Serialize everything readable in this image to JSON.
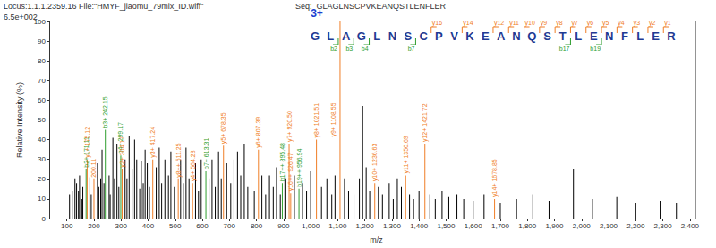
{
  "chart_data": {
    "type": "bar",
    "header": "Locus:1.1.1.2359.16 File:\"HMYF_jiaomu_79mix_ID.wiff\"",
    "sequence_label": "Seq:",
    "sequence": "GLAGLNSCPVKEANQSTLENFLER",
    "charge": "3+",
    "scale_label": "6.5e+002",
    "x_label": "m/z",
    "y_label": "Relative Intensity (%)",
    "xlim": [
      35,
      2450
    ],
    "xticks": [
      100,
      200,
      300,
      400,
      500,
      600,
      700,
      800,
      900,
      1000,
      1100,
      1200,
      1300,
      1400,
      1500,
      1600,
      1700,
      1800,
      1900,
      2000,
      2100,
      2200,
      2300,
      2400
    ],
    "ylim": [
      0,
      100
    ],
    "yticks": [
      0,
      10,
      20,
      30,
      40,
      50,
      60,
      70,
      80,
      90,
      100
    ],
    "color": "#000000",
    "peaks": {
      "x": [
        110,
        120,
        130,
        136,
        143,
        147,
        155,
        159,
        185,
        190,
        213,
        218,
        225,
        230,
        237,
        256,
        260,
        270,
        276,
        285,
        292,
        315,
        322,
        330,
        341,
        350,
        358,
        369,
        375,
        382,
        389,
        397,
        405,
        430,
        441,
        450,
        462,
        475,
        484,
        497,
        520,
        530,
        540,
        551,
        575,
        586,
        596,
        625,
        636,
        648,
        660,
        670,
        690,
        705,
        717,
        730,
        742,
        755,
        768,
        780,
        792,
        820,
        834,
        848,
        862,
        874,
        888,
        905,
        940,
        970,
        985,
        1000,
        1040,
        1060,
        1078,
        1090,
        1125,
        1140,
        1160,
        1180,
        1192,
        1205,
        1218,
        1250,
        1265,
        1290,
        1305,
        1320,
        1335,
        1365,
        1380,
        1400,
        1440,
        1460,
        1485,
        1510,
        1540,
        1565,
        1600,
        1640,
        1700,
        1760,
        1820,
        1880,
        1970,
        2040,
        2130,
        2200,
        2290,
        2350,
        2420
      ],
      "values": [
        12,
        14,
        20,
        18,
        14,
        22,
        10,
        16,
        21,
        12,
        28,
        16,
        20,
        35,
        18,
        22,
        12,
        41,
        20,
        38,
        16,
        30,
        20,
        42,
        25,
        40,
        30,
        15,
        29,
        18,
        35,
        28,
        16,
        26,
        36,
        18,
        30,
        22,
        34,
        16,
        30,
        18,
        36,
        20,
        28,
        14,
        30,
        20,
        30,
        16,
        34,
        20,
        28,
        18,
        30,
        34,
        22,
        38,
        16,
        24,
        14,
        22,
        12,
        22,
        16,
        26,
        12,
        20,
        22,
        18,
        14,
        24,
        16,
        20,
        12,
        22,
        20,
        14,
        12,
        20,
        57,
        26,
        14,
        16,
        12,
        18,
        10,
        20,
        16,
        12,
        10,
        14,
        12,
        10,
        14,
        11,
        12,
        10,
        9,
        12,
        8,
        10,
        12,
        9,
        25,
        10,
        11,
        8,
        9,
        8,
        100
      ]
    },
    "annotations": [
      {
        "label": "b2+ 171.11",
        "x": 171.11,
        "value": 25,
        "color": "#2e9e2e"
      },
      {
        "label": "y1+ 175.12",
        "x": 175.12,
        "value": 30,
        "color": "#f07e26"
      },
      {
        "label": "200.11",
        "x": 200.11,
        "value": 20,
        "color": "#f07e26"
      },
      {
        "label": "b3+ 242.15",
        "x": 242.15,
        "value": 45,
        "color": "#2e9e2e"
      },
      {
        "label": "b4+ 299.17",
        "x": 299.17,
        "value": 32,
        "color": "#2e9e2e"
      },
      {
        "label": "y2+ 304.17",
        "x": 304.17,
        "value": 25,
        "color": "#f07e26"
      },
      {
        "label": "y3+ 417.24",
        "x": 417.24,
        "value": 30,
        "color": "#f07e26"
      },
      {
        "label": "y8++ 511.25",
        "x": 511.25,
        "value": 20,
        "color": "#f07e26"
      },
      {
        "label": "y4+ 564.28",
        "x": 564.28,
        "value": 18,
        "color": "#f07e26"
      },
      {
        "label": "b7+ 613.31",
        "x": 613.31,
        "value": 24,
        "color": "#2e9e2e"
      },
      {
        "label": "y5+ 678.35",
        "x": 678.35,
        "value": 37,
        "color": "#f07e26"
      },
      {
        "label": "y6+ 807.39",
        "x": 807.39,
        "value": 35,
        "color": "#f07e26"
      },
      {
        "label": "b17++ 895.48",
        "x": 895.48,
        "value": 18,
        "color": "#2e9e2e"
      },
      {
        "label": "y7+ 920.50",
        "x": 920.5,
        "value": 38,
        "color": "#f07e26"
      },
      {
        "label": "y16++ 926.47",
        "x": 926.47,
        "value": 13,
        "color": "#f07e26"
      },
      {
        "label": "b19++ 956.94",
        "x": 956.94,
        "value": 15,
        "color": "#2e9e2e"
      },
      {
        "label": "y8+ 1021.51",
        "x": 1021.51,
        "value": 40,
        "color": "#f07e26"
      },
      {
        "label": "y9+ 1108.55",
        "x": 1108.55,
        "value": 100,
        "color": "#f07e26"
      },
      {
        "label": "y10+ 1236.63",
        "x": 1236.63,
        "value": 18,
        "color": "#f07e26"
      },
      {
        "label": "y11+ 1350.69",
        "x": 1350.69,
        "value": 22,
        "color": "#f07e26"
      },
      {
        "label": "y12+ 1421.72",
        "x": 1421.72,
        "value": 38,
        "color": "#f07e26"
      },
      {
        "label": "y14+ 1678.85",
        "x": 1678.85,
        "value": 10,
        "color": "#f07e26"
      }
    ],
    "y_ion_color": "#f07e26",
    "b_ion_color": "#2e9e2e",
    "sequence_color": "#1f3a93",
    "y_ions": [
      {
        "label": "y16",
        "n": 16
      },
      {
        "label": "y14",
        "n": 14
      },
      {
        "label": "y12",
        "n": 12
      },
      {
        "label": "y11",
        "n": 11
      },
      {
        "label": "y10",
        "n": 10
      },
      {
        "label": "y9",
        "n": 9
      },
      {
        "label": "y8",
        "n": 8
      },
      {
        "label": "y7",
        "n": 7
      },
      {
        "label": "y6",
        "n": 6
      },
      {
        "label": "y5",
        "n": 5
      },
      {
        "label": "y4",
        "n": 4
      },
      {
        "label": "y3",
        "n": 3
      },
      {
        "label": "y2",
        "n": 2
      },
      {
        "label": "y1",
        "n": 1
      }
    ],
    "b_ions": [
      {
        "label": "b2",
        "n": 2
      },
      {
        "label": "b3",
        "n": 3
      },
      {
        "label": "b4",
        "n": 4
      },
      {
        "label": "b7",
        "n": 7
      },
      {
        "label": "b17",
        "n": 17
      },
      {
        "label": "b19",
        "n": 19
      }
    ]
  }
}
